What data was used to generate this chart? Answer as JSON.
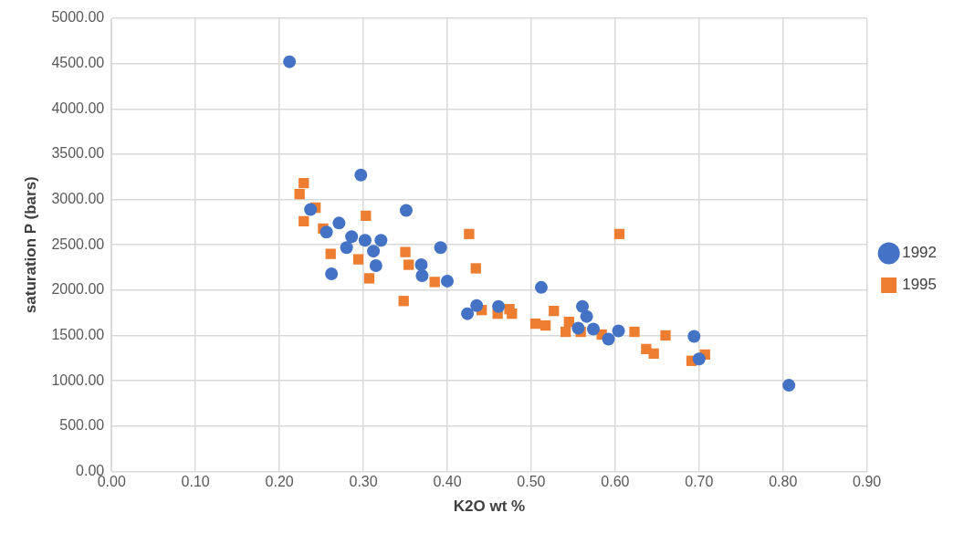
{
  "chart_data": {
    "type": "scatter",
    "xlabel": "K2O wt %",
    "ylabel": "saturation P (bars)",
    "xlim": [
      0,
      0.9
    ],
    "ylim": [
      0,
      5000
    ],
    "xticks": [
      {
        "value": 0,
        "label": "0.00"
      },
      {
        "value": 0.1,
        "label": "0.10"
      },
      {
        "value": 0.2,
        "label": "0.20"
      },
      {
        "value": 0.3,
        "label": "0.30"
      },
      {
        "value": 0.4,
        "label": "0.40"
      },
      {
        "value": 0.5,
        "label": "0.50"
      },
      {
        "value": 0.6,
        "label": "0.60"
      },
      {
        "value": 0.7,
        "label": "0.70"
      },
      {
        "value": 0.8,
        "label": "0.80"
      },
      {
        "value": 0.9,
        "label": "0.90"
      }
    ],
    "yticks": [
      {
        "value": 0,
        "label": "0.00"
      },
      {
        "value": 500,
        "label": "500.00"
      },
      {
        "value": 1000,
        "label": "1000.00"
      },
      {
        "value": 1500,
        "label": "1500.00"
      },
      {
        "value": 2000,
        "label": "2000.00"
      },
      {
        "value": 2500,
        "label": "2500.00"
      },
      {
        "value": 3000,
        "label": "3000.00"
      },
      {
        "value": 3500,
        "label": "3500.00"
      },
      {
        "value": 4000,
        "label": "4000.00"
      },
      {
        "value": 4500,
        "label": "4500.00"
      },
      {
        "value": 5000,
        "label": "5000.00"
      }
    ],
    "grid": true,
    "legend": "right",
    "series": [
      {
        "name": "1995",
        "color": "#ed7d31",
        "marker": "square",
        "x": [
          0.229,
          0.224,
          0.243,
          0.229,
          0.252,
          0.261,
          0.294,
          0.303,
          0.307,
          0.35,
          0.354,
          0.385,
          0.348,
          0.426,
          0.434,
          0.441,
          0.46,
          0.477,
          0.474,
          0.505,
          0.517,
          0.527,
          0.545,
          0.541,
          0.559,
          0.584,
          0.605,
          0.623,
          0.637,
          0.646,
          0.66,
          0.691,
          0.707
        ],
        "values": [
          3180,
          3060,
          2910,
          2760,
          2680,
          2400,
          2340,
          2820,
          2130,
          2420,
          2280,
          2090,
          1880,
          2620,
          2240,
          1780,
          1740,
          1740,
          1790,
          1630,
          1610,
          1770,
          1650,
          1540,
          1540,
          1510,
          2620,
          1540,
          1350,
          1300,
          1500,
          1220,
          1290
        ]
      },
      {
        "name": "1992",
        "color": "#4472c4",
        "marker": "circle",
        "x": [
          0.212,
          0.297,
          0.237,
          0.271,
          0.256,
          0.262,
          0.286,
          0.28,
          0.302,
          0.321,
          0.312,
          0.315,
          0.351,
          0.392,
          0.369,
          0.37,
          0.4,
          0.435,
          0.424,
          0.512,
          0.461,
          0.561,
          0.566,
          0.574,
          0.556,
          0.592,
          0.604,
          0.694,
          0.7,
          0.807
        ],
        "values": [
          4520,
          3270,
          2890,
          2740,
          2640,
          2180,
          2590,
          2470,
          2550,
          2550,
          2430,
          2270,
          2880,
          2470,
          2280,
          2160,
          2100,
          1830,
          1740,
          2030,
          1820,
          1820,
          1710,
          1570,
          1580,
          1460,
          1550,
          1490,
          1240,
          950
        ]
      }
    ]
  }
}
